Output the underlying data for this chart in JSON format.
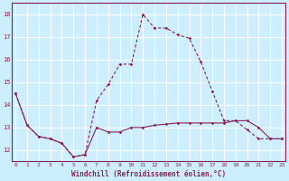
{
  "xlabel": "Windchill (Refroidissement éolien,°C)",
  "background_color": "#cceeff",
  "grid_color": "#ffffff",
  "line_color": "#882255",
  "x_hours": [
    0,
    1,
    2,
    3,
    4,
    5,
    6,
    7,
    8,
    9,
    10,
    11,
    12,
    13,
    14,
    15,
    16,
    17,
    18,
    19,
    20,
    21,
    22,
    23
  ],
  "series1_y": [
    14.5,
    13.1,
    12.6,
    12.5,
    12.3,
    11.7,
    11.8,
    13.0,
    12.8,
    12.8,
    13.0,
    13.0,
    13.1,
    13.15,
    13.2,
    13.2,
    13.2,
    13.2,
    13.2,
    13.3,
    13.3,
    13.0,
    12.5,
    12.5
  ],
  "series2_x": [
    0,
    1,
    2,
    3,
    4,
    5,
    6,
    7,
    8,
    9,
    10,
    11,
    12,
    13,
    14,
    15,
    16,
    17,
    18,
    19,
    20,
    21,
    22,
    23
  ],
  "series2_y": [
    14.5,
    13.1,
    12.6,
    12.5,
    12.3,
    11.7,
    11.8,
    14.2,
    14.9,
    15.8,
    15.8,
    18.0,
    17.4,
    17.4,
    17.1,
    16.95,
    15.9,
    14.6,
    13.3,
    13.3,
    12.9,
    12.5,
    12.5,
    12.5
  ],
  "ylim": [
    11.5,
    18.5
  ],
  "yticks": [
    12,
    13,
    14,
    15,
    16,
    17,
    18
  ],
  "xlim": [
    -0.3,
    23.3
  ],
  "xticks": [
    0,
    1,
    2,
    3,
    4,
    5,
    6,
    7,
    8,
    9,
    10,
    11,
    12,
    13,
    14,
    15,
    16,
    17,
    18,
    19,
    20,
    21,
    22,
    23
  ]
}
